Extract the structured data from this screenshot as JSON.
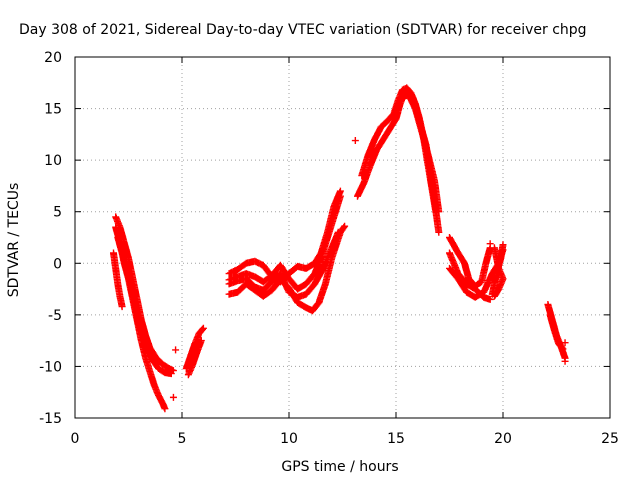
{
  "chart_data": {
    "type": "scatter",
    "title": "Day 308 of 2021, Sidereal Day-to-day VTEC variation (SDTVAR) for receiver chpg",
    "xlabel": "GPS time / hours",
    "ylabel": "SDTVAR / TECUs",
    "xlim": [
      0,
      25
    ],
    "ylim": [
      -15,
      20
    ],
    "xticks": [
      0,
      5,
      10,
      15,
      20,
      25
    ],
    "yticks": [
      -15,
      -10,
      -5,
      0,
      5,
      10,
      15,
      20
    ],
    "xtick_labels": [
      "0",
      "5",
      "10",
      "15",
      "20",
      "25"
    ],
    "ytick_labels": [
      "-15",
      "-10",
      "-5",
      "0",
      "5",
      "10",
      "15",
      "20"
    ],
    "grid": true,
    "marker": "+",
    "color": "#ff0000",
    "tracks": [
      {
        "name": "a1",
        "points": [
          [
            1.9,
            4.5
          ],
          [
            2.1,
            3.5
          ],
          [
            2.3,
            2.0
          ],
          [
            2.5,
            0.5
          ],
          [
            2.7,
            -1.5
          ],
          [
            2.9,
            -3.5
          ],
          [
            3.1,
            -5.5
          ],
          [
            3.3,
            -7.0
          ],
          [
            3.5,
            -8.2
          ],
          [
            3.8,
            -9.2
          ],
          [
            4.1,
            -9.8
          ],
          [
            4.4,
            -10.2
          ],
          [
            4.6,
            -10.4
          ]
        ]
      },
      {
        "name": "a2",
        "points": [
          [
            1.9,
            3.5
          ],
          [
            2.1,
            2.0
          ],
          [
            2.3,
            0.0
          ],
          [
            2.5,
            -1.5
          ],
          [
            2.7,
            -3.5
          ],
          [
            2.9,
            -5.5
          ],
          [
            3.1,
            -7.5
          ],
          [
            3.3,
            -9.2
          ],
          [
            3.5,
            -10.5
          ],
          [
            3.7,
            -11.8
          ],
          [
            3.9,
            -12.8
          ],
          [
            4.1,
            -13.6
          ],
          [
            4.2,
            -14.1
          ]
        ]
      },
      {
        "name": "a3",
        "points": [
          [
            2.0,
            2.5
          ],
          [
            2.2,
            1.0
          ],
          [
            2.4,
            -0.5
          ],
          [
            2.6,
            -2.0
          ],
          [
            2.8,
            -4.0
          ],
          [
            3.0,
            -6.0
          ],
          [
            3.3,
            -8.0
          ],
          [
            3.6,
            -9.3
          ],
          [
            3.9,
            -10.2
          ],
          [
            4.2,
            -10.6
          ],
          [
            4.5,
            -10.7
          ]
        ]
      },
      {
        "name": "a4",
        "points": [
          [
            1.8,
            1.0
          ],
          [
            1.9,
            -0.5
          ],
          [
            2.0,
            -2.0
          ],
          [
            2.1,
            -3.2
          ],
          [
            2.2,
            -4.2
          ]
        ]
      },
      {
        "name": "b1",
        "points": [
          [
            5.3,
            -10.8
          ],
          [
            5.5,
            -9.8
          ],
          [
            5.7,
            -8.6
          ],
          [
            5.9,
            -7.5
          ]
        ]
      },
      {
        "name": "b2",
        "points": [
          [
            5.2,
            -10.2
          ],
          [
            5.4,
            -9.0
          ],
          [
            5.6,
            -7.8
          ],
          [
            5.8,
            -6.8
          ],
          [
            6.0,
            -6.3
          ]
        ]
      },
      {
        "name": "c1",
        "points": [
          [
            7.2,
            -1.0
          ],
          [
            7.6,
            -0.6
          ],
          [
            8.0,
            0.0
          ],
          [
            8.4,
            0.2
          ],
          [
            8.8,
            -0.2
          ],
          [
            9.2,
            -1.3
          ],
          [
            9.6,
            -1.8
          ],
          [
            10.0,
            -1.0
          ],
          [
            10.4,
            -0.3
          ],
          [
            10.8,
            -0.5
          ],
          [
            11.2,
            0.0
          ],
          [
            11.5,
            1.0
          ],
          [
            11.8,
            3.0
          ],
          [
            12.1,
            5.5
          ],
          [
            12.4,
            7.0
          ]
        ]
      },
      {
        "name": "c2",
        "points": [
          [
            7.2,
            -1.6
          ],
          [
            7.6,
            -1.3
          ],
          [
            8.0,
            -1.0
          ],
          [
            8.4,
            -1.3
          ],
          [
            8.8,
            -1.8
          ],
          [
            9.2,
            -1.2
          ],
          [
            9.6,
            -0.2
          ],
          [
            10.0,
            -1.5
          ],
          [
            10.4,
            -2.5
          ],
          [
            10.8,
            -2.0
          ],
          [
            11.2,
            -1.0
          ],
          [
            11.5,
            0.5
          ],
          [
            11.8,
            2.5
          ],
          [
            12.1,
            4.5
          ],
          [
            12.4,
            6.5
          ]
        ]
      },
      {
        "name": "c3",
        "points": [
          [
            7.2,
            -2.0
          ],
          [
            7.6,
            -1.7
          ],
          [
            8.0,
            -1.5
          ],
          [
            8.4,
            -2.3
          ],
          [
            8.8,
            -2.6
          ],
          [
            9.2,
            -1.8
          ],
          [
            9.6,
            -1.0
          ],
          [
            10.0,
            -2.8
          ],
          [
            10.4,
            -3.3
          ],
          [
            10.8,
            -3.0
          ],
          [
            11.2,
            -2.0
          ],
          [
            11.6,
            -0.5
          ],
          [
            12.0,
            1.5
          ],
          [
            12.3,
            3.0
          ]
        ]
      },
      {
        "name": "c4",
        "points": [
          [
            7.2,
            -3.0
          ],
          [
            7.6,
            -2.8
          ],
          [
            8.0,
            -2.0
          ],
          [
            8.4,
            -2.6
          ],
          [
            8.8,
            -3.2
          ],
          [
            9.2,
            -2.6
          ],
          [
            9.6,
            -1.6
          ],
          [
            10.0,
            -2.4
          ],
          [
            10.4,
            -3.8
          ],
          [
            10.8,
            -4.3
          ],
          [
            11.1,
            -4.6
          ],
          [
            11.4,
            -3.8
          ],
          [
            11.7,
            -2.0
          ],
          [
            12.0,
            0.5
          ],
          [
            12.4,
            3.0
          ],
          [
            12.6,
            3.6
          ]
        ]
      },
      {
        "name": "d1",
        "points": [
          [
            13.2,
            6.5
          ],
          [
            13.5,
            7.8
          ],
          [
            13.8,
            9.5
          ],
          [
            14.1,
            11.0
          ],
          [
            14.4,
            12.0
          ],
          [
            14.7,
            13.0
          ],
          [
            15.0,
            14.0
          ],
          [
            15.2,
            15.5
          ],
          [
            15.4,
            16.5
          ],
          [
            15.6,
            16.6
          ],
          [
            15.8,
            16.0
          ],
          [
            16.0,
            14.5
          ],
          [
            16.2,
            13.0
          ],
          [
            16.4,
            11.5
          ],
          [
            16.6,
            9.0
          ],
          [
            16.8,
            6.0
          ],
          [
            17.0,
            3.0
          ]
        ]
      },
      {
        "name": "d2",
        "points": [
          [
            13.4,
            8.5
          ],
          [
            13.7,
            10.5
          ],
          [
            14.0,
            12.0
          ],
          [
            14.3,
            13.2
          ],
          [
            14.6,
            13.8
          ],
          [
            14.9,
            14.5
          ],
          [
            15.1,
            15.8
          ],
          [
            15.3,
            16.8
          ],
          [
            15.5,
            17.0
          ],
          [
            15.7,
            16.5
          ],
          [
            15.9,
            15.5
          ],
          [
            16.1,
            14.0
          ],
          [
            16.3,
            12.0
          ],
          [
            16.5,
            9.5
          ],
          [
            16.7,
            7.0
          ],
          [
            16.9,
            4.5
          ]
        ]
      },
      {
        "name": "d3",
        "points": [
          [
            15.0,
            15.0
          ],
          [
            15.3,
            16.2
          ],
          [
            15.6,
            16.3
          ],
          [
            15.9,
            15.0
          ],
          [
            16.2,
            12.8
          ],
          [
            16.5,
            10.5
          ],
          [
            16.8,
            8.0
          ],
          [
            17.0,
            5.0
          ]
        ]
      },
      {
        "name": "e1",
        "points": [
          [
            17.5,
            1.0
          ],
          [
            17.9,
            -1.0
          ],
          [
            18.3,
            -2.0
          ],
          [
            18.7,
            -2.5
          ],
          [
            19.1,
            -3.3
          ],
          [
            19.4,
            -3.5
          ]
        ]
      },
      {
        "name": "e2",
        "points": [
          [
            17.5,
            2.5
          ],
          [
            17.9,
            1.0
          ],
          [
            18.2,
            0.0
          ],
          [
            18.4,
            -1.5
          ],
          [
            18.7,
            -2.2
          ],
          [
            19.0,
            -1.8
          ],
          [
            19.2,
            0.0
          ],
          [
            19.4,
            1.5
          ]
        ]
      },
      {
        "name": "e3",
        "points": [
          [
            17.5,
            -0.5
          ],
          [
            17.9,
            -1.5
          ],
          [
            18.3,
            -2.8
          ],
          [
            18.7,
            -3.3
          ],
          [
            19.1,
            -2.8
          ],
          [
            19.5,
            -1.0
          ],
          [
            19.8,
            0.0
          ],
          [
            20.0,
            1.3
          ]
        ]
      },
      {
        "name": "e4",
        "points": [
          [
            19.5,
            -3.0
          ],
          [
            19.7,
            -1.0
          ],
          [
            19.9,
            0.5
          ],
          [
            20.0,
            1.8
          ]
        ]
      },
      {
        "name": "e5",
        "points": [
          [
            19.6,
            1.5
          ],
          [
            19.8,
            -0.5
          ],
          [
            20.0,
            -1.5
          ],
          [
            19.8,
            -2.5
          ],
          [
            19.6,
            -3.2
          ]
        ]
      },
      {
        "name": "f1",
        "points": [
          [
            22.1,
            -4.0
          ],
          [
            22.3,
            -5.5
          ],
          [
            22.5,
            -7.0
          ],
          [
            22.7,
            -8.0
          ],
          [
            22.9,
            -9.2
          ]
        ]
      },
      {
        "name": "f2",
        "points": [
          [
            22.2,
            -5.0
          ],
          [
            22.4,
            -6.5
          ],
          [
            22.6,
            -7.8
          ],
          [
            22.8,
            -8.3
          ]
        ]
      }
    ],
    "isolated_points": [
      [
        4.7,
        -8.4
      ],
      [
        4.6,
        -13.0
      ],
      [
        13.1,
        11.9
      ],
      [
        19.4,
        1.9
      ],
      [
        22.9,
        -7.7
      ],
      [
        22.9,
        -9.5
      ]
    ]
  }
}
